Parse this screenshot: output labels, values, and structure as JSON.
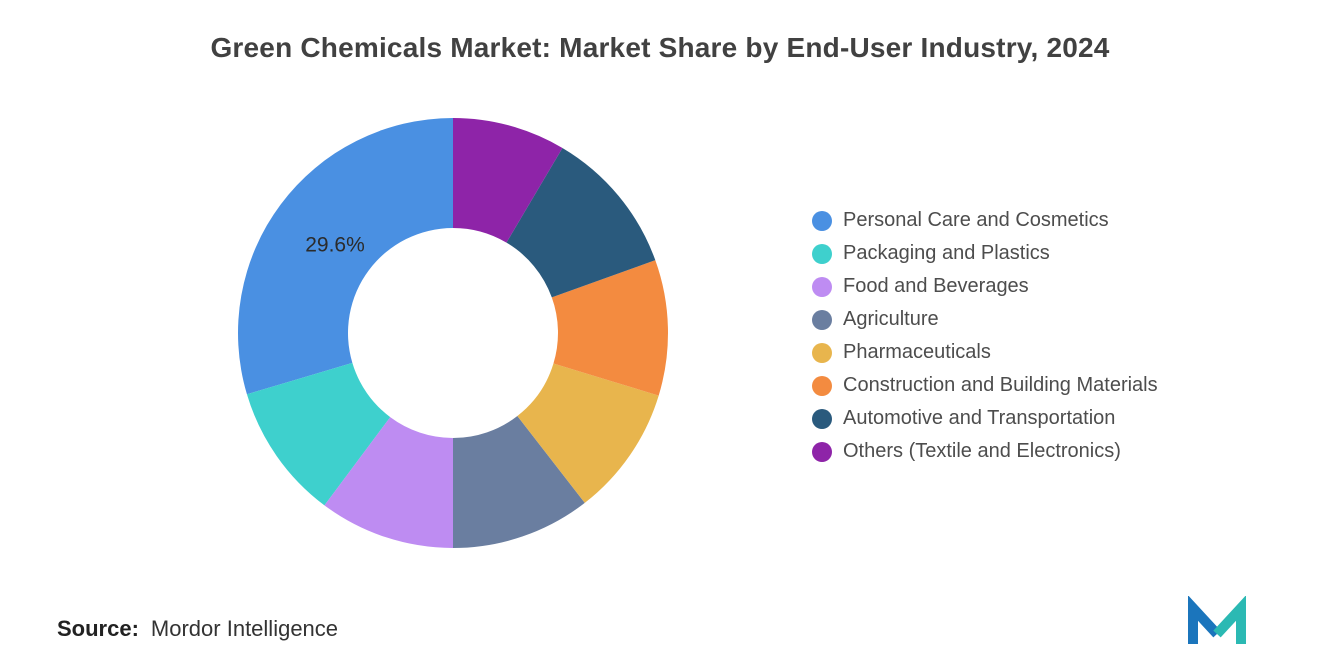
{
  "source": {
    "label": "Source:",
    "value": "Mordor Intelligence"
  },
  "logo": {
    "icon": "mordor-intelligence-m-logo",
    "blue": "#1B75BC",
    "teal": "#2BB9B3"
  },
  "chart_data": {
    "type": "pie",
    "subtype": "donut",
    "title": "Green Chemicals Market: Market Share by End-User Industry, 2024",
    "legend_position": "right",
    "start_angle_deg": -90,
    "direction": "counterclockwise",
    "inner_radius_ratio": 0.49,
    "visible_data_labels": [
      "29.6%"
    ],
    "segments": [
      {
        "name": "Personal Care and Cosmetics",
        "value": 29.6,
        "color": "#4A90E2",
        "label": "29.6%"
      },
      {
        "name": "Packaging and Plastics",
        "value": 10.2,
        "color": "#3ED0CD"
      },
      {
        "name": "Food and Beverages",
        "value": 10.2,
        "color": "#BE8CF2"
      },
      {
        "name": "Agriculture",
        "value": 10.5,
        "color": "#6A7EA0"
      },
      {
        "name": "Pharmaceuticals",
        "value": 9.8,
        "color": "#E8B54D"
      },
      {
        "name": "Construction and Building Materials",
        "value": 10.2,
        "color": "#F38B40"
      },
      {
        "name": "Automotive and Transportation",
        "value": 11.0,
        "color": "#2A5A7D"
      },
      {
        "name": "Others (Textile and Electronics)",
        "value": 8.5,
        "color": "#8E24A8"
      }
    ]
  }
}
